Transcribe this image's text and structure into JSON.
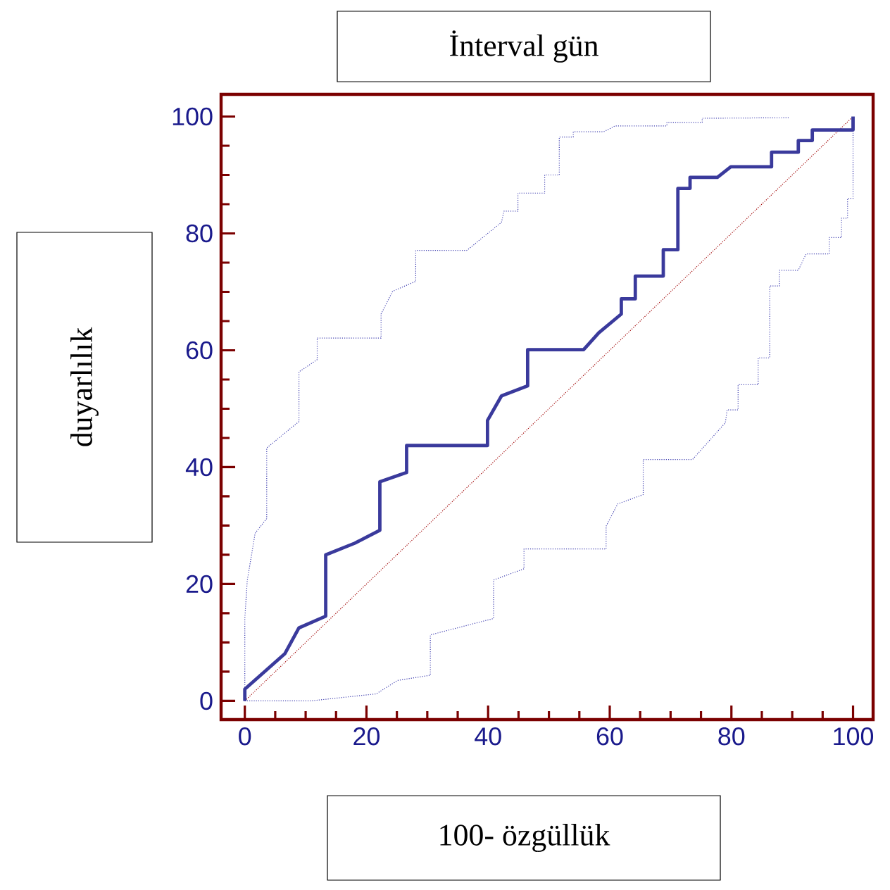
{
  "chart_data": {
    "type": "line",
    "title": "İnterval gün",
    "xlabel": "100- özgüllük",
    "ylabel": "duyarlılık",
    "xlim": [
      -3.9,
      103.3
    ],
    "ylim": [
      -3.2,
      103.8
    ],
    "xticks": [
      0,
      20,
      40,
      60,
      80,
      100
    ],
    "yticks": [
      0,
      20,
      40,
      60,
      80,
      100
    ],
    "marker": "none",
    "series": [
      {
        "color": "#a00000",
        "line_style": "dotted",
        "x": [
          0,
          100
        ],
        "values": [
          0,
          100
        ]
      },
      {
        "color": "#4040b0",
        "line_style": "dotted",
        "x": [
          0,
          0,
          0.4,
          1.7,
          3.6,
          3.6,
          8.9,
          8.9,
          11.9,
          11.9,
          22.4,
          22.4,
          24.3,
          28.1,
          28.1,
          36.5,
          42.2,
          42.6,
          44.9,
          44.9,
          49.3,
          49.3,
          51.7,
          51.7,
          54,
          54,
          59,
          60.9,
          69.4,
          69.4,
          75.2,
          75.2,
          89.4
        ],
        "values": [
          0,
          14.1,
          20.6,
          28.7,
          31.2,
          43.3,
          47.8,
          56.3,
          58.4,
          62.1,
          62.1,
          66.2,
          70.1,
          71.8,
          77.1,
          77.1,
          81.9,
          83.8,
          83.8,
          86.9,
          86.9,
          90,
          90,
          96.5,
          96.5,
          97.4,
          97.4,
          98.4,
          98.4,
          99,
          99,
          99.7,
          99.8
        ]
      },
      {
        "color": "#4040b0",
        "line_style": "dotted",
        "x": [
          0,
          10.8,
          21.6,
          25.1,
          30.5,
          30.5,
          40.9,
          40.9,
          45.9,
          45.9,
          59.4,
          59.4,
          61.3,
          65.5,
          65.5,
          73.6,
          79,
          79.3,
          81.1,
          81.1,
          84.4,
          84.4,
          86.3,
          86.3,
          87.9,
          87.9,
          91,
          92.3,
          96.1,
          96.1,
          98.1,
          98.1,
          99.1,
          99.1,
          100,
          100
        ],
        "values": [
          0,
          0,
          1.2,
          3.5,
          4.4,
          11.3,
          14.1,
          20.7,
          22.6,
          26,
          26,
          29.9,
          33.7,
          35.3,
          41.3,
          41.3,
          47.6,
          49.8,
          49.8,
          54.1,
          54.1,
          58.7,
          58.7,
          71,
          71,
          73.7,
          73.7,
          76.5,
          76.5,
          79.3,
          79.3,
          82.6,
          82.6,
          86,
          86,
          100
        ]
      },
      {
        "color": "#3a3a9c",
        "line_style": "solid",
        "x": [
          0,
          0,
          6.6,
          8.9,
          13.3,
          13.3,
          18.1,
          22.2,
          22.2,
          26.6,
          26.6,
          39.9,
          39.9,
          42.2,
          46.5,
          46.5,
          55.7,
          58.2,
          61.9,
          61.9,
          64.2,
          64.2,
          68.8,
          68.8,
          71.2,
          71.2,
          73.2,
          73.2,
          77.7,
          79.9,
          86.6,
          86.6,
          91,
          91,
          93.3,
          93.3,
          100,
          100
        ],
        "values": [
          0,
          2,
          8.1,
          12.5,
          14.5,
          25,
          27,
          29.2,
          37.5,
          39.1,
          43.7,
          43.7,
          48,
          52.2,
          53.9,
          60.1,
          60.1,
          63,
          66.2,
          68.8,
          68.8,
          72.7,
          72.7,
          77.2,
          77.2,
          87.7,
          87.7,
          89.6,
          89.6,
          91.4,
          91.4,
          93.9,
          93.9,
          95.9,
          95.9,
          97.7,
          97.7,
          100
        ]
      }
    ]
  }
}
